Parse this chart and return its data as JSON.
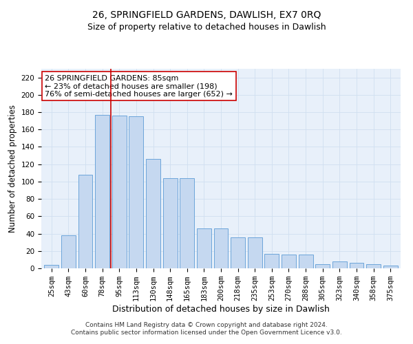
{
  "title": "26, SPRINGFIELD GARDENS, DAWLISH, EX7 0RQ",
  "subtitle": "Size of property relative to detached houses in Dawlish",
  "xlabel": "Distribution of detached houses by size in Dawlish",
  "ylabel": "Number of detached properties",
  "bar_values": [
    4,
    38,
    108,
    177,
    176,
    175,
    126,
    104,
    104,
    46,
    46,
    36,
    36,
    17,
    16,
    16,
    5,
    8,
    6,
    5,
    3
  ],
  "categories": [
    "25sqm",
    "43sqm",
    "60sqm",
    "78sqm",
    "95sqm",
    "113sqm",
    "130sqm",
    "148sqm",
    "165sqm",
    "183sqm",
    "200sqm",
    "218sqm",
    "235sqm",
    "253sqm",
    "270sqm",
    "288sqm",
    "305sqm",
    "323sqm",
    "340sqm",
    "358sqm",
    "375sqm"
  ],
  "bar_color": "#c5d8f0",
  "bar_edge_color": "#5b9bd5",
  "grid_color": "#d0dff0",
  "background_color": "#e8f0fa",
  "annotation_line1": "26 SPRINGFIELD GARDENS: 85sqm",
  "annotation_line2": "← 23% of detached houses are smaller (198)",
  "annotation_line3": "76% of semi-detached houses are larger (652) →",
  "annotation_box_color": "white",
  "annotation_box_edge_color": "#cc0000",
  "red_line_x": 3.5,
  "ylim": [
    0,
    230
  ],
  "yticks": [
    0,
    20,
    40,
    60,
    80,
    100,
    120,
    140,
    160,
    180,
    200,
    220
  ],
  "footer_text": "Contains HM Land Registry data © Crown copyright and database right 2024.\nContains public sector information licensed under the Open Government Licence v3.0.",
  "title_fontsize": 10,
  "subtitle_fontsize": 9,
  "xlabel_fontsize": 9,
  "ylabel_fontsize": 8.5,
  "tick_fontsize": 7.5,
  "annotation_fontsize": 8,
  "footer_fontsize": 6.5
}
